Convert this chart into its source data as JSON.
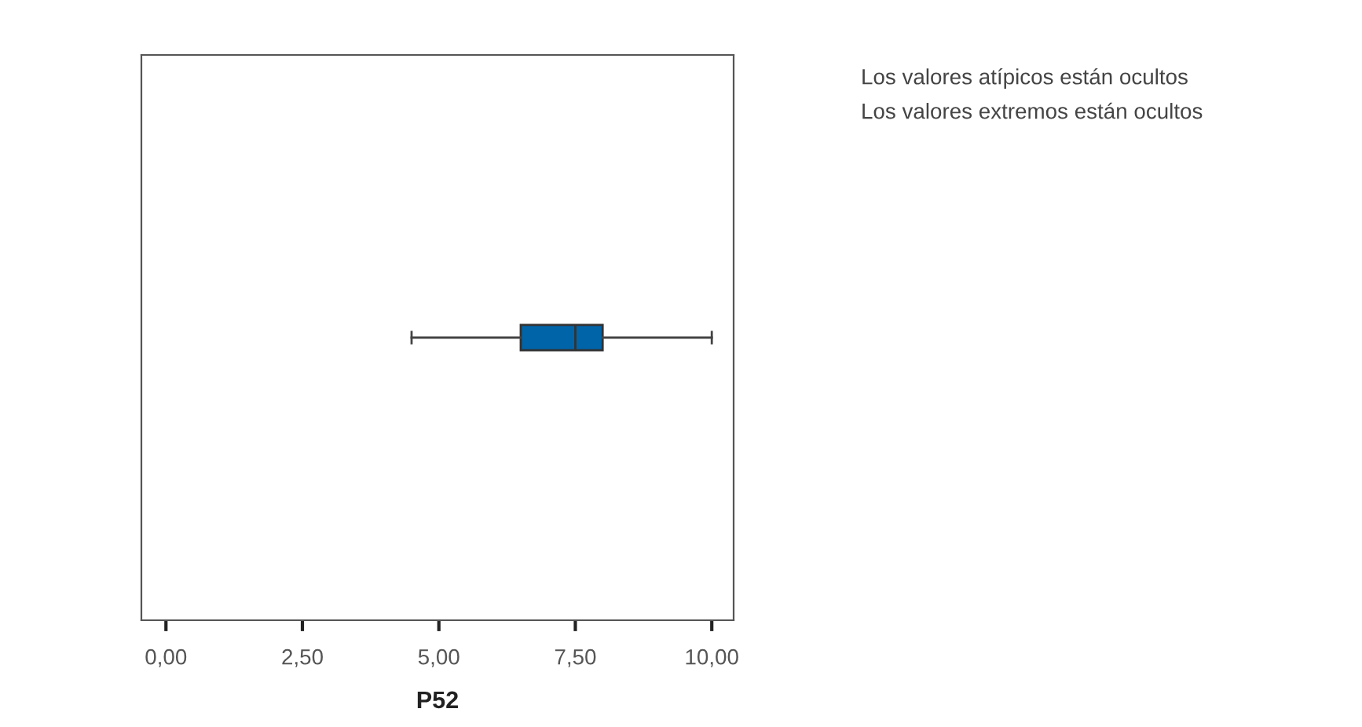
{
  "chart_data": {
    "type": "box",
    "orientation": "horizontal",
    "categories": [
      null
    ],
    "xlabel": "P52",
    "boxes": [
      {
        "low": 4.5,
        "q1": 6.5,
        "median": 7.5,
        "q3": 8.0,
        "high": 10.0
      }
    ],
    "color": "#0064a8",
    "xlim": [
      -0.45,
      10.4
    ],
    "xticks": [
      {
        "value": 0,
        "label": "0,00"
      },
      {
        "value": 2.5,
        "label": "2,50"
      },
      {
        "value": 5,
        "label": "5,00"
      },
      {
        "value": 7.5,
        "label": "7,50"
      },
      {
        "value": 10,
        "label": "10,00"
      }
    ],
    "annotations": [
      "Los valores atípicos están ocultos",
      "Los valores extremos están ocultos"
    ],
    "grid": false
  }
}
